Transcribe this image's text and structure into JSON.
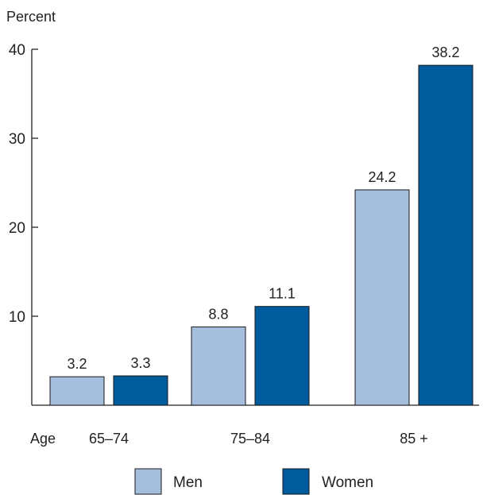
{
  "chart_data": {
    "type": "bar",
    "ylabel": "Percent",
    "xlabel": "Age",
    "categories": [
      "65–74",
      "75–84",
      "85 +"
    ],
    "series": [
      {
        "name": "Men",
        "color": "#a6bedd",
        "values": [
          3.2,
          8.8,
          24.2
        ],
        "labels": [
          "3.2",
          "8.8",
          "24.2"
        ]
      },
      {
        "name": "Women",
        "color": "#005b9d",
        "values": [
          3.3,
          11.1,
          38.2
        ],
        "labels": [
          "3.3",
          "11.1",
          "38.2"
        ]
      }
    ],
    "ylim": [
      0,
      40
    ],
    "yticks": [
      10,
      20,
      30,
      40
    ],
    "ytick_labels": [
      "10",
      "20",
      "30",
      "40"
    ],
    "grid": false,
    "legend_position": "bottom"
  }
}
